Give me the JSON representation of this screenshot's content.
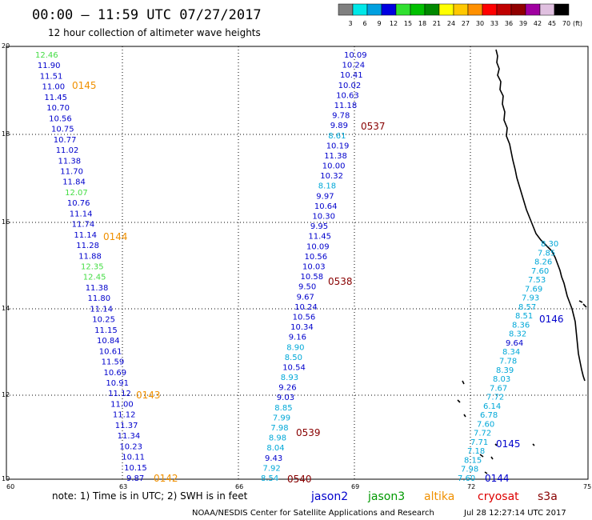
{
  "header": {
    "title": "00:00 – 11:59 UTC 07/27/2017",
    "subtitle": "12 hour collection of altimeter wave heights"
  },
  "colorbar": {
    "unit_label": "(ft)",
    "bins": [
      {
        "color": "#808080",
        "label": "3"
      },
      {
        "color": "#00e8e8",
        "label": "6"
      },
      {
        "color": "#00a0e0",
        "label": "9"
      },
      {
        "color": "#0000e0",
        "label": "12"
      },
      {
        "color": "#30e030",
        "label": "15"
      },
      {
        "color": "#00c000",
        "label": "18"
      },
      {
        "color": "#008800",
        "label": "21"
      },
      {
        "color": "#ffff00",
        "label": "24"
      },
      {
        "color": "#ffc800",
        "label": "27"
      },
      {
        "color": "#ff9000",
        "label": "30"
      },
      {
        "color": "#ff0000",
        "label": "33"
      },
      {
        "color": "#c00000",
        "label": "36"
      },
      {
        "color": "#900000",
        "label": "39"
      },
      {
        "color": "#a000a0",
        "label": "42"
      },
      {
        "color": "#e0c0e0",
        "label": "45"
      },
      {
        "color": "#000000",
        "label": "70"
      }
    ]
  },
  "axes": {
    "lon_ticks": [
      "60",
      "63",
      "66",
      "69",
      "72",
      "75"
    ],
    "lat_ticks": [
      "20",
      "18",
      "16",
      "14",
      "12",
      "10"
    ]
  },
  "wave_colors": {
    "blue": "#0000cc",
    "cyan": "#00a8d8",
    "green": "#44dd44",
    "orange": "#f09000",
    "darkred": "#880000"
  },
  "tracks": [
    {
      "name": "track-west",
      "points": [
        {
          "text": "12.46",
          "c": "green"
        },
        {
          "text": "11.90",
          "c": "blue"
        },
        {
          "text": "11.51",
          "c": "blue"
        },
        {
          "text": "11.00",
          "c": "blue"
        },
        {
          "text": "11.45",
          "c": "blue"
        },
        {
          "text": "10.70",
          "c": "blue"
        },
        {
          "text": "10.56",
          "c": "blue"
        },
        {
          "text": "10.75",
          "c": "blue"
        },
        {
          "text": "10.77",
          "c": "blue"
        },
        {
          "text": "11.02",
          "c": "blue"
        },
        {
          "text": "11.38",
          "c": "blue"
        },
        {
          "text": "11.70",
          "c": "blue"
        },
        {
          "text": "11.84",
          "c": "blue"
        },
        {
          "text": "12.07",
          "c": "green"
        },
        {
          "text": "10.76",
          "c": "blue"
        },
        {
          "text": "11.14",
          "c": "blue"
        },
        {
          "text": "11.74",
          "c": "blue"
        },
        {
          "text": "11.14",
          "c": "blue"
        },
        {
          "text": "11.28",
          "c": "blue"
        },
        {
          "text": "11.88",
          "c": "blue"
        },
        {
          "text": "12.35",
          "c": "green"
        },
        {
          "text": "12.45",
          "c": "green"
        },
        {
          "text": "11.38",
          "c": "blue"
        },
        {
          "text": "11.80",
          "c": "blue"
        },
        {
          "text": "11.14",
          "c": "blue"
        },
        {
          "text": "10.25",
          "c": "blue"
        },
        {
          "text": "11.15",
          "c": "blue"
        },
        {
          "text": "10.84",
          "c": "blue"
        },
        {
          "text": "10.61",
          "c": "blue"
        },
        {
          "text": "11.59",
          "c": "blue"
        },
        {
          "text": "10.69",
          "c": "blue"
        },
        {
          "text": "10.91",
          "c": "blue"
        },
        {
          "text": "11.12",
          "c": "blue"
        },
        {
          "text": "11.00",
          "c": "blue"
        },
        {
          "text": "11.12",
          "c": "blue"
        },
        {
          "text": "11.37",
          "c": "blue"
        },
        {
          "text": "11.34",
          "c": "blue"
        },
        {
          "text": "10.23",
          "c": "blue"
        },
        {
          "text": "10.11",
          "c": "blue"
        },
        {
          "text": "10.15",
          "c": "blue"
        },
        {
          "text": "9.87",
          "c": "blue"
        }
      ]
    },
    {
      "name": "track-middle",
      "points": [
        {
          "text": "10.09",
          "c": "blue"
        },
        {
          "text": "10.24",
          "c": "blue"
        },
        {
          "text": "10.41",
          "c": "blue"
        },
        {
          "text": "10.02",
          "c": "blue"
        },
        {
          "text": "10.63",
          "c": "blue"
        },
        {
          "text": "11.18",
          "c": "blue"
        },
        {
          "text": "9.78",
          "c": "blue"
        },
        {
          "text": "9.89",
          "c": "blue"
        },
        {
          "text": "8.61",
          "c": "cyan"
        },
        {
          "text": "10.19",
          "c": "blue"
        },
        {
          "text": "11.38",
          "c": "blue"
        },
        {
          "text": "10.00",
          "c": "blue"
        },
        {
          "text": "10.32",
          "c": "blue"
        },
        {
          "text": "8.18",
          "c": "cyan"
        },
        {
          "text": "9.97",
          "c": "blue"
        },
        {
          "text": "10.64",
          "c": "blue"
        },
        {
          "text": "10.30",
          "c": "blue"
        },
        {
          "text": "9.95",
          "c": "blue"
        },
        {
          "text": "11.45",
          "c": "blue"
        },
        {
          "text": "10.09",
          "c": "blue"
        },
        {
          "text": "10.56",
          "c": "blue"
        },
        {
          "text": "10.03",
          "c": "blue"
        },
        {
          "text": "10.58",
          "c": "blue"
        },
        {
          "text": "9.50",
          "c": "blue"
        },
        {
          "text": "9.67",
          "c": "blue"
        },
        {
          "text": "10.24",
          "c": "blue"
        },
        {
          "text": "10.56",
          "c": "blue"
        },
        {
          "text": "10.34",
          "c": "blue"
        },
        {
          "text": "9.16",
          "c": "blue"
        },
        {
          "text": "8.90",
          "c": "cyan"
        },
        {
          "text": "8.50",
          "c": "cyan"
        },
        {
          "text": "10.54",
          "c": "blue"
        },
        {
          "text": "8.93",
          "c": "cyan"
        },
        {
          "text": "9.26",
          "c": "blue"
        },
        {
          "text": "9.03",
          "c": "blue"
        },
        {
          "text": "8.85",
          "c": "cyan"
        },
        {
          "text": "7.99",
          "c": "cyan"
        },
        {
          "text": "7.98",
          "c": "cyan"
        },
        {
          "text": "8.98",
          "c": "cyan"
        },
        {
          "text": "8.04",
          "c": "cyan"
        },
        {
          "text": "9.43",
          "c": "blue"
        },
        {
          "text": "7.92",
          "c": "cyan"
        },
        {
          "text": "8.54",
          "c": "cyan"
        }
      ]
    },
    {
      "name": "track-east",
      "points": [
        {
          "text": "8.30",
          "c": "cyan"
        },
        {
          "text": "7.85",
          "c": "cyan"
        },
        {
          "text": "8.26",
          "c": "cyan"
        },
        {
          "text": "7.60",
          "c": "cyan"
        },
        {
          "text": "7.53",
          "c": "cyan"
        },
        {
          "text": "7.69",
          "c": "cyan"
        },
        {
          "text": "7.93",
          "c": "cyan"
        },
        {
          "text": "8.57",
          "c": "cyan"
        },
        {
          "text": "8.51",
          "c": "cyan"
        },
        {
          "text": "8.36",
          "c": "cyan"
        },
        {
          "text": "8.32",
          "c": "cyan"
        },
        {
          "text": "9.64",
          "c": "blue"
        },
        {
          "text": "8.34",
          "c": "cyan"
        },
        {
          "text": "7.78",
          "c": "cyan"
        },
        {
          "text": "8.39",
          "c": "cyan"
        },
        {
          "text": "8.03",
          "c": "cyan"
        },
        {
          "text": "7.67",
          "c": "cyan"
        },
        {
          "text": "7.72",
          "c": "cyan"
        },
        {
          "text": "6.14",
          "c": "cyan"
        },
        {
          "text": "6.78",
          "c": "cyan"
        },
        {
          "text": "7.60",
          "c": "cyan"
        },
        {
          "text": "7.72",
          "c": "cyan"
        },
        {
          "text": "7.71",
          "c": "cyan"
        },
        {
          "text": "7.18",
          "c": "cyan"
        },
        {
          "text": "8.15",
          "c": "cyan"
        },
        {
          "text": "7.98",
          "c": "cyan"
        },
        {
          "text": "7.60",
          "c": "cyan"
        }
      ]
    }
  ],
  "pass_labels": [
    {
      "text": "0145",
      "c": "orange"
    },
    {
      "text": "0144",
      "c": "orange"
    },
    {
      "text": "0143",
      "c": "orange"
    },
    {
      "text": "0142",
      "c": "orange"
    },
    {
      "text": "0537",
      "c": "darkred"
    },
    {
      "text": "0538",
      "c": "darkred"
    },
    {
      "text": "0539",
      "c": "darkred"
    },
    {
      "text": "0540",
      "c": "darkred"
    },
    {
      "text": "0146",
      "c": "blue"
    },
    {
      "text": "0145",
      "c": "blue"
    },
    {
      "text": "0144",
      "c": "blue"
    }
  ],
  "note": "note: 1) Time is in UTC; 2) SWH is in feet",
  "legend": [
    {
      "text": "jason2",
      "color": "#0000cc"
    },
    {
      "text": "jason3",
      "color": "#009900"
    },
    {
      "text": "altika",
      "color": "#f09000"
    },
    {
      "text": "cryosat",
      "color": "#dd0000"
    },
    {
      "text": "s3a",
      "color": "#880000"
    }
  ],
  "footer": {
    "center": "NOAA/NESDIS Center for Satellite Applications and Research",
    "timestamp": "Jul 28 12:27:14 UTC 2017"
  }
}
